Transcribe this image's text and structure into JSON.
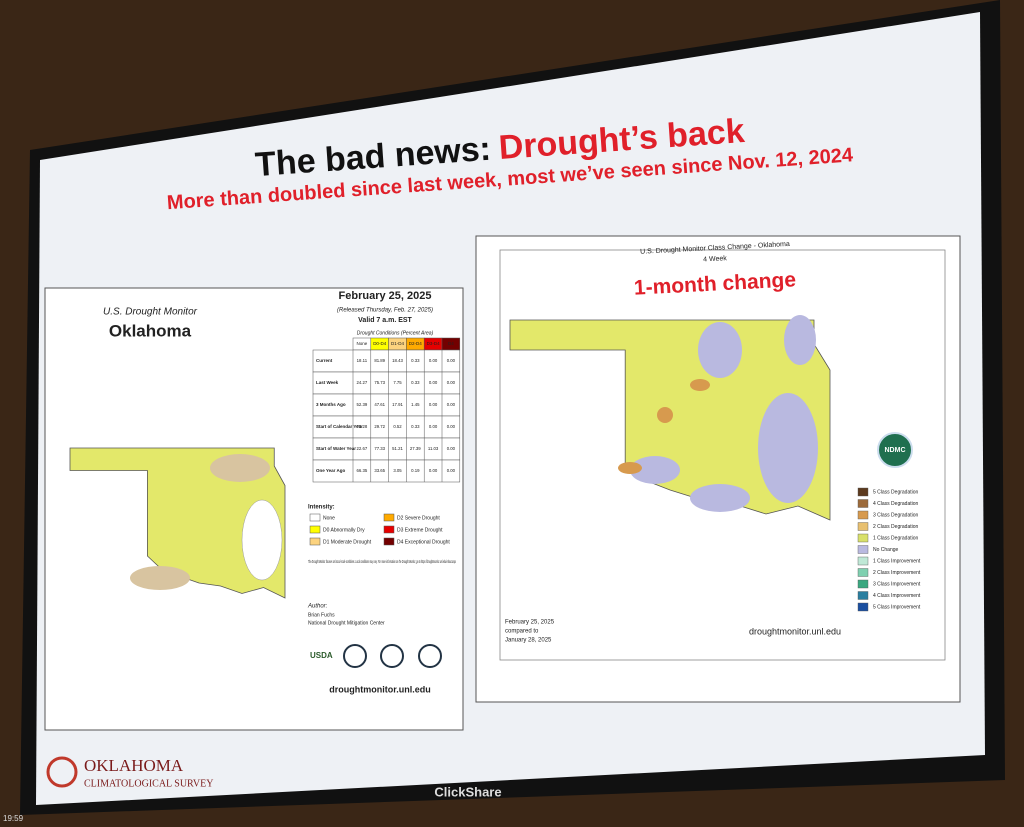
{
  "slide": {
    "title_prefix": "The bad news:",
    "title_highlight": "Drought’s back",
    "subtitle": "More than doubled since last week, most we’ve seen since Nov. 12, 2024"
  },
  "left_panel": {
    "header": "U.S. Drought Monitor",
    "state": "Oklahoma",
    "date": "February 25, 2025",
    "released": "(Released Thursday, Feb. 27, 2025)",
    "valid": "Valid 7 a.m. EST",
    "table_caption": "Drought Conditions (Percent Area)",
    "table": {
      "columns": [
        "None",
        "D0-D4",
        "D1-D4",
        "D2-D4",
        "D3-D4",
        "D4"
      ],
      "rows": [
        {
          "label": "Current",
          "cells": [
            "18.11",
            "81.89",
            "18.43",
            "0.33",
            "0.00",
            "0.00"
          ]
        },
        {
          "label": "Last Week",
          "cells": [
            "24.27",
            "75.73",
            "7.75",
            "0.33",
            "0.00",
            "0.00"
          ]
        },
        {
          "label": "3 Months Ago",
          "cells": [
            "52.39",
            "47.61",
            "17.91",
            "1.45",
            "0.00",
            "0.00"
          ]
        },
        {
          "label": "Start of Calendar Year",
          "cells": [
            "70.28",
            "29.72",
            "0.52",
            "0.33",
            "0.00",
            "0.00"
          ]
        },
        {
          "label": "Start of Water Year",
          "cells": [
            "22.67",
            "77.33",
            "51.21",
            "27.39",
            "11.03",
            "0.00"
          ]
        },
        {
          "label": "One Year Ago",
          "cells": [
            "66.35",
            "33.65",
            "3.05",
            "0.19",
            "0.00",
            "0.00"
          ]
        }
      ]
    },
    "intensity_title": "Intensity:",
    "legend": [
      {
        "label": "None",
        "color": "#ffffff"
      },
      {
        "label": "D0 Abnormally Dry",
        "color": "#ffff00"
      },
      {
        "label": "D1 Moderate Drought",
        "color": "#fcd37f"
      },
      {
        "label": "D2 Severe Drought",
        "color": "#ffaa00"
      },
      {
        "label": "D3 Extreme Drought",
        "color": "#e60000"
      },
      {
        "label": "D4 Exceptional Drought",
        "color": "#730000"
      }
    ],
    "note": "The Drought Monitor focuses on broad-scale conditions. Local conditions may vary. For more information on the Drought Monitor, go to https://droughtmonitor.unl.edu/About.aspx",
    "author_title": "Author:",
    "author": "Brian Fuchs",
    "author_org": "National Drought Mitigation Center",
    "logo_usda": "USDA",
    "url": "droughtmonitor.unl.edu"
  },
  "right_panel": {
    "header": "U.S. Drought Monitor Class Change - Oklahoma",
    "subheader": "4 Week",
    "highlight": "1-month change",
    "badge": "NDMC",
    "legend": [
      {
        "label": "5 Class Degradation",
        "color": "#5c3a1e"
      },
      {
        "label": "4 Class Degradation",
        "color": "#9c6a3a"
      },
      {
        "label": "3 Class Degradation",
        "color": "#d79a4e"
      },
      {
        "label": "2 Class Degradation",
        "color": "#e8c070"
      },
      {
        "label": "1 Class Degradation",
        "color": "#d8e06a"
      },
      {
        "label": "No Change",
        "color": "#b9b9e0"
      },
      {
        "label": "1 Class Improvement",
        "color": "#bfe8d6"
      },
      {
        "label": "2 Class Improvement",
        "color": "#7fd0b0"
      },
      {
        "label": "3 Class Improvement",
        "color": "#3aa880"
      },
      {
        "label": "4 Class Improvement",
        "color": "#2a7fa0"
      },
      {
        "label": "5 Class Improvement",
        "color": "#1a4fa0"
      }
    ],
    "compare_line1": "February 25, 2025",
    "compare_line2": "compared to",
    "compare_line3": "January 28, 2025",
    "url": "droughtmonitor.unl.edu"
  },
  "footer": {
    "org_line1": "OKLAHOMA",
    "org_line2": "CLIMATOLOGICAL SURVEY",
    "device": "ClickShare",
    "clock": "19:59"
  }
}
